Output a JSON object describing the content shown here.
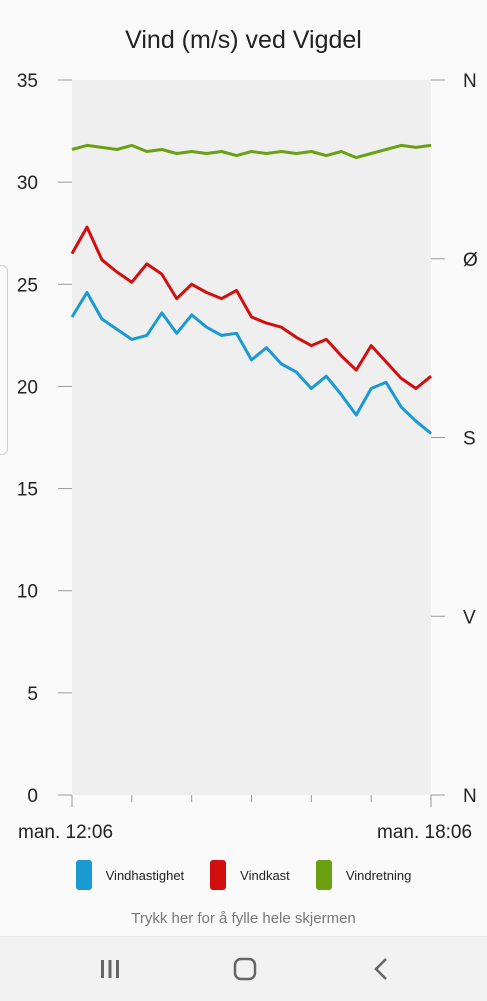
{
  "chart_data": {
    "type": "line",
    "title": "Vind (m/s) ved Vigdel",
    "ylim": [
      0,
      35
    ],
    "y_ticks": [
      "0",
      "5",
      "10",
      "15",
      "20",
      "25",
      "30",
      "35"
    ],
    "y2_ticks": [
      "N",
      "V",
      "S",
      "Ø",
      "N"
    ],
    "x_start_label": "man. 12:06",
    "x_end_label": "man. 18:06",
    "x": [
      "12:06",
      "12:21",
      "12:36",
      "12:51",
      "13:06",
      "13:21",
      "13:36",
      "13:51",
      "14:06",
      "14:21",
      "14:36",
      "14:51",
      "15:06",
      "15:21",
      "15:36",
      "15:51",
      "16:06",
      "16:21",
      "16:36",
      "16:51",
      "17:06",
      "17:21",
      "17:36",
      "17:51",
      "18:06"
    ],
    "series": [
      {
        "name": "Vindhastighet",
        "color": "#1a9ad2",
        "values": [
          23.4,
          24.6,
          23.3,
          22.8,
          22.3,
          22.5,
          23.6,
          22.6,
          23.5,
          22.9,
          22.5,
          22.6,
          21.3,
          21.9,
          21.1,
          20.7,
          19.9,
          20.5,
          19.6,
          18.6,
          19.9,
          20.2,
          19.0,
          18.3,
          17.7
        ]
      },
      {
        "name": "Vindkast",
        "color": "#d10f0f",
        "values": [
          26.5,
          27.8,
          26.2,
          25.6,
          25.1,
          26.0,
          25.5,
          24.3,
          25.0,
          24.6,
          24.3,
          24.7,
          23.4,
          23.1,
          22.9,
          22.4,
          22.0,
          22.3,
          21.5,
          20.8,
          22.0,
          21.2,
          20.4,
          19.9,
          20.5
        ]
      },
      {
        "name": "Vindretning",
        "color": "#6aa012",
        "values": [
          31.6,
          31.8,
          31.7,
          31.6,
          31.8,
          31.5,
          31.6,
          31.4,
          31.5,
          31.4,
          31.5,
          31.3,
          31.5,
          31.4,
          31.5,
          31.4,
          31.5,
          31.3,
          31.5,
          31.2,
          31.4,
          31.6,
          31.8,
          31.7,
          31.8
        ]
      }
    ],
    "grid": false,
    "legend_position": "bottom"
  },
  "footer": {
    "fill_screen_label": "Trykk her for å fylle hele skjermen"
  },
  "navbar": {
    "icons": [
      "recent-apps-icon",
      "home-icon",
      "back-icon"
    ]
  }
}
